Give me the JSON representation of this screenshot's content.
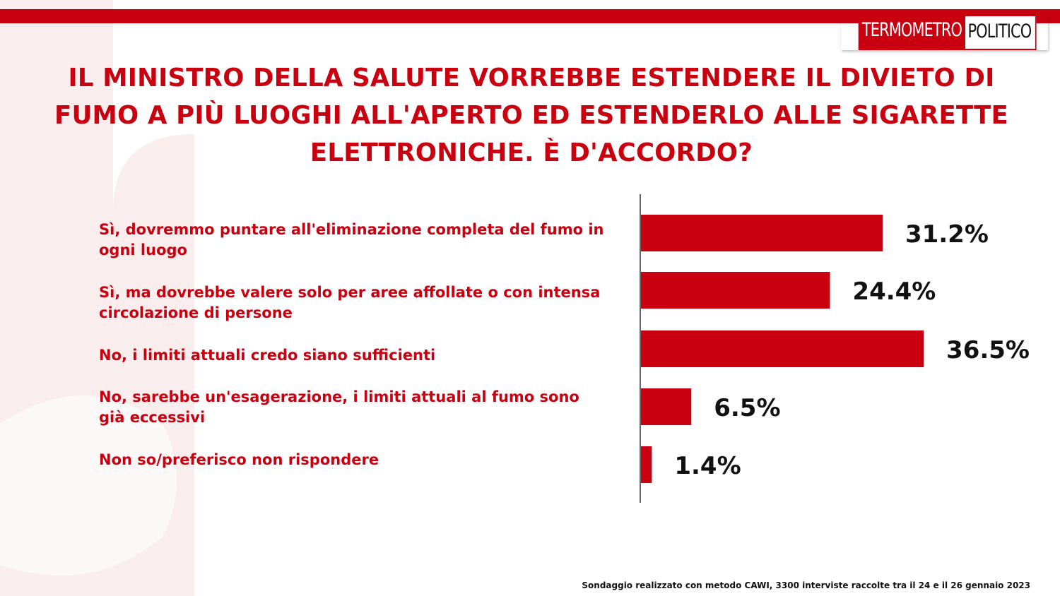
{
  "brand": {
    "logo_part1": "TERMOMETRO",
    "logo_part2": "POLITICO",
    "accent_color": "#c8000f"
  },
  "title": "IL MINISTRO DELLA SALUTE VORREBBE ESTENDERE IL DIVIETO DI FUMO A PIÙ LUOGHI ALL'APERTO ED ESTENDERLO ALLE SIGARETTE ELETTRONICHE. È D'ACCORDO?",
  "footnote": "Sondaggio realizzato con metodo CAWI, 3300 interviste raccolte tra il 24 e il 26 gennaio 2023",
  "chart_data": {
    "type": "bar",
    "orientation": "horizontal",
    "categories": [
      "Sì, dovremmo puntare all'eliminazione completa del fumo in ogni luogo",
      "Sì, ma dovrebbe valere solo per aree affollate o con intensa circolazione di persone",
      "No, i limiti attuali credo siano sufficienti",
      "No, sarebbe un'esagerazione, i limiti attuali al fumo sono già  eccessivi",
      "Non so/preferisco non rispondere"
    ],
    "values": [
      31.2,
      24.4,
      36.5,
      6.5,
      1.4
    ],
    "value_labels": [
      "31.2%",
      "24.4%",
      "36.5%",
      "6.5%",
      "1.4%"
    ],
    "unit": "%",
    "bar_color": "#c8000f",
    "grid": false,
    "legend": "none"
  }
}
